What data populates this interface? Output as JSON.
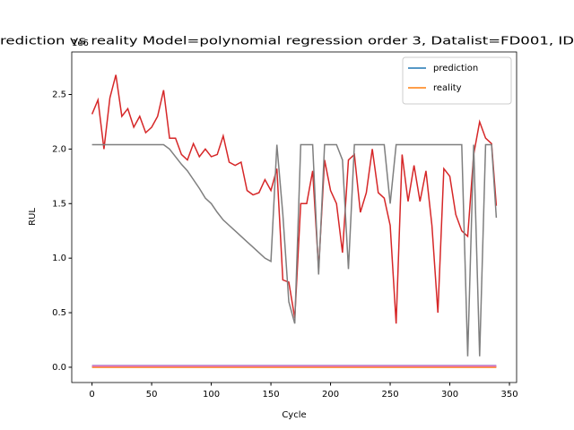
{
  "chart_data": {
    "type": "line",
    "title": "rediction vs reality Model=polynomial regression order 3, Datalist=FD001, ID",
    "x_label": "Cycle",
    "y_label": "RUL",
    "y_offset_label": "1e6",
    "x": [
      0,
      5,
      10,
      15,
      20,
      25,
      30,
      35,
      40,
      45,
      50,
      55,
      60,
      65,
      70,
      75,
      80,
      85,
      90,
      95,
      100,
      105,
      110,
      115,
      120,
      125,
      130,
      135,
      140,
      145,
      150,
      155,
      160,
      165,
      170,
      175,
      180,
      185,
      190,
      195,
      200,
      205,
      210,
      215,
      220,
      225,
      230,
      235,
      240,
      245,
      250,
      255,
      260,
      265,
      270,
      275,
      280,
      285,
      290,
      295,
      300,
      305,
      310,
      315,
      320,
      325,
      330,
      335,
      339
    ],
    "series": [
      {
        "name": "prediction",
        "color": "#1f77b4",
        "values": [
          0.005,
          0.005,
          0.005,
          0.005,
          0.005,
          0.005,
          0.005,
          0.005,
          0.005,
          0.005,
          0.005,
          0.005,
          0.005,
          0.005,
          0.005,
          0.005,
          0.005,
          0.005,
          0.005,
          0.005,
          0.005,
          0.005,
          0.005,
          0.005,
          0.005,
          0.005,
          0.005,
          0.005,
          0.005,
          0.005,
          0.005,
          0.005,
          0.005,
          0.005,
          0.005,
          0.005,
          0.005,
          0.005,
          0.005,
          0.005,
          0.005,
          0.005,
          0.005,
          0.005,
          0.005,
          0.005,
          0.005,
          0.005,
          0.005,
          0.005,
          0.005,
          0.005,
          0.005,
          0.005,
          0.005,
          0.005,
          0.005,
          0.005,
          0.005,
          0.005,
          0.005,
          0.005,
          0.005,
          0.005,
          0.005,
          0.005,
          0.005,
          0.005,
          0.005
        ]
      },
      {
        "name": "reality",
        "color": "#ff7f0e",
        "values": [
          0,
          0,
          0,
          0,
          0,
          0,
          0,
          0,
          0,
          0,
          0,
          0,
          0,
          0,
          0,
          0,
          0,
          0,
          0,
          0,
          0,
          0,
          0,
          0,
          0,
          0,
          0,
          0,
          0,
          0,
          0,
          0,
          0,
          0,
          0,
          0,
          0,
          0,
          0,
          0,
          0,
          0,
          0,
          0,
          0,
          0,
          0,
          0,
          0,
          0,
          0,
          0,
          0,
          0,
          0,
          0,
          0,
          0,
          0,
          0,
          0,
          0,
          0,
          0,
          0,
          0,
          0,
          0,
          0
        ]
      },
      {
        "color": "#d62728",
        "values": [
          2.32,
          2.45,
          2.0,
          2.47,
          2.68,
          2.3,
          2.37,
          2.2,
          2.3,
          2.15,
          2.2,
          2.3,
          2.54,
          2.1,
          2.1,
          1.95,
          1.9,
          2.05,
          1.93,
          2.0,
          1.93,
          1.95,
          2.12,
          1.88,
          1.85,
          1.88,
          1.62,
          1.58,
          1.6,
          1.72,
          1.62,
          1.82,
          0.8,
          0.78,
          0.45,
          1.5,
          1.5,
          1.8,
          0.9,
          1.9,
          1.62,
          1.5,
          1.05,
          1.9,
          1.95,
          1.42,
          1.6,
          2.0,
          1.6,
          1.55,
          1.3,
          0.4,
          1.95,
          1.52,
          1.85,
          1.52,
          1.8,
          1.3,
          0.5,
          1.82,
          1.75,
          1.4,
          1.25,
          1.2,
          1.95,
          2.25,
          2.1,
          2.05,
          1.48
        ]
      },
      {
        "color": "#7f7f7f",
        "values": [
          2.04,
          2.04,
          2.04,
          2.04,
          2.04,
          2.04,
          2.04,
          2.04,
          2.04,
          2.04,
          2.04,
          2.04,
          2.04,
          2.0,
          1.93,
          1.86,
          1.8,
          1.72,
          1.64,
          1.55,
          1.5,
          1.42,
          1.35,
          1.3,
          1.25,
          1.2,
          1.15,
          1.1,
          1.05,
          1.0,
          0.97,
          2.04,
          1.4,
          0.6,
          0.4,
          2.04,
          2.04,
          2.04,
          0.85,
          2.04,
          2.04,
          2.04,
          1.9,
          0.9,
          2.04,
          2.04,
          2.04,
          2.04,
          2.04,
          2.04,
          1.5,
          2.04,
          2.04,
          2.04,
          2.04,
          2.04,
          2.04,
          2.04,
          2.04,
          2.04,
          2.04,
          2.04,
          2.04,
          0.1,
          2.04,
          0.1,
          2.04,
          2.04,
          1.37
        ]
      },
      {
        "color": "#9467bd",
        "values": [
          0.015,
          0.015,
          0.015,
          0.015,
          0.015,
          0.015,
          0.015,
          0.015,
          0.015,
          0.015,
          0.015,
          0.015,
          0.015,
          0.015,
          0.015,
          0.015,
          0.015,
          0.015,
          0.015,
          0.015,
          0.015,
          0.015,
          0.015,
          0.015,
          0.015,
          0.015,
          0.015,
          0.015,
          0.015,
          0.015,
          0.015,
          0.015,
          0.015,
          0.015,
          0.015,
          0.015,
          0.015,
          0.015,
          0.015,
          0.015,
          0.015,
          0.015,
          0.015,
          0.015,
          0.015,
          0.015,
          0.015,
          0.015,
          0.015,
          0.015,
          0.015,
          0.015,
          0.015,
          0.015,
          0.015,
          0.015,
          0.015,
          0.015,
          0.015,
          0.015,
          0.015,
          0.015,
          0.015,
          0.015,
          0.015,
          0.015,
          0.015,
          0.015,
          0.015
        ]
      },
      {
        "color": "#e377c2",
        "values": [
          0.01,
          0.01,
          0.01,
          0.01,
          0.01,
          0.01,
          0.01,
          0.01,
          0.01,
          0.01,
          0.01,
          0.01,
          0.01,
          0.01,
          0.01,
          0.01,
          0.01,
          0.01,
          0.01,
          0.01,
          0.01,
          0.01,
          0.01,
          0.01,
          0.01,
          0.01,
          0.01,
          0.01,
          0.01,
          0.01,
          0.01,
          0.01,
          0.01,
          0.01,
          0.01,
          0.01,
          0.01,
          0.01,
          0.01,
          0.01,
          0.01,
          0.01,
          0.01,
          0.01,
          0.01,
          0.01,
          0.01,
          0.01,
          0.01,
          0.01,
          0.01,
          0.01,
          0.01,
          0.01,
          0.01,
          0.01,
          0.01,
          0.01,
          0.01,
          0.01,
          0.01,
          0.01,
          0.01,
          0.01,
          0.01,
          0.01,
          0.01,
          0.01,
          0.01
        ]
      }
    ],
    "xlim": [
      -17,
      356
    ],
    "ylim": [
      -0.14,
      2.89
    ],
    "xticks": [
      0,
      50,
      100,
      150,
      200,
      250,
      300,
      350
    ],
    "yticks": [
      {
        "value": 0,
        "label": "0.0"
      },
      {
        "value": 0.5,
        "label": "0.5"
      },
      {
        "value": 1,
        "label": "1.0"
      },
      {
        "value": 1.5,
        "label": "1.5"
      },
      {
        "value": 2,
        "label": "2.0"
      },
      {
        "value": 2.5,
        "label": "2.5"
      }
    ],
    "legend": "upper right"
  }
}
